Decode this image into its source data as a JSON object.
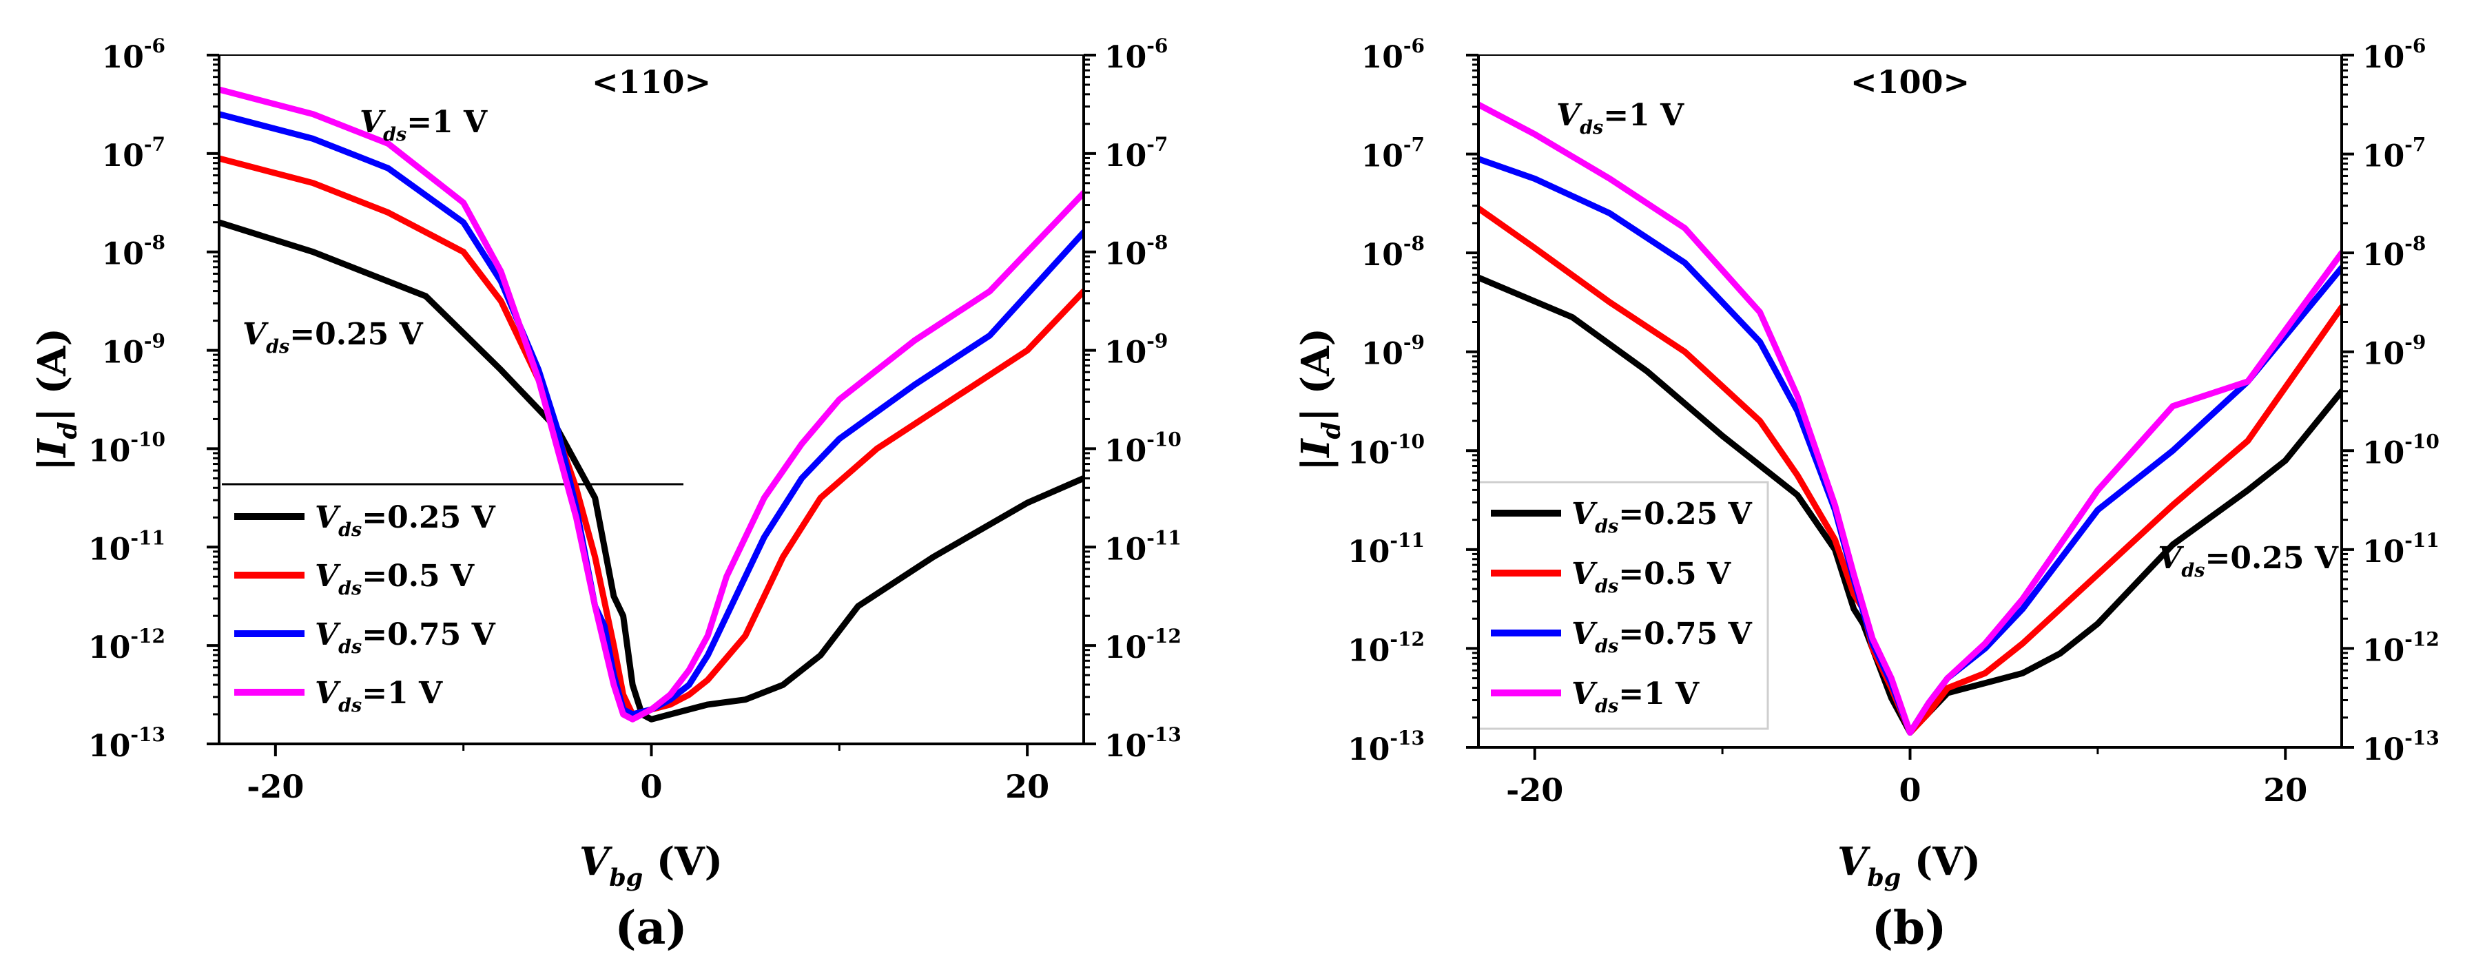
{
  "chart_data": [
    {
      "type": "line",
      "y_scale": "log",
      "panel": "(a)",
      "title": "<110>",
      "xlabel_main": "V",
      "xlabel_sub": "bg",
      "xlabel_unit": " (V)",
      "ylabel_pre": "|",
      "ylabel_main": "I",
      "ylabel_sub": "d",
      "ylabel_post": "| (A)",
      "xlim": [
        -23,
        23
      ],
      "ylim_exp": [
        -13,
        -6
      ],
      "x_ticks": [
        -20,
        0,
        20
      ],
      "x_tick_labels": [
        "-20",
        "0",
        "20"
      ],
      "y_tick_exponents": [
        -13,
        -12,
        -11,
        -10,
        -9,
        -8,
        -7,
        -6
      ],
      "y_tick_labels": [
        "-13",
        "-12",
        "-11",
        "-10",
        "-9",
        "-8",
        "-7",
        "-6"
      ],
      "y_tick_base": "10",
      "grid": false,
      "legend": {
        "position": "bottom-left",
        "entries": [
          {
            "main": "V",
            "sub": "ds",
            "rest": "=0.25 V",
            "color": "#000000"
          },
          {
            "main": "V",
            "sub": "ds",
            "rest": "=0.5 V",
            "color": "#ff0000"
          },
          {
            "main": "V",
            "sub": "ds",
            "rest": "=0.75 V",
            "color": "#0000ff"
          },
          {
            "main": "V",
            "sub": "ds",
            "rest": "=1 V",
            "color": "#ff00ff"
          }
        ]
      },
      "annotations": [
        {
          "main": "V",
          "sub": "ds",
          "rest": "=1 V",
          "position": "top-left"
        },
        {
          "main": "V",
          "sub": "ds",
          "rest": "=0.25 V",
          "position": "middle-left"
        }
      ],
      "series": [
        {
          "name": "Vds=0.25 V",
          "color": "#000000",
          "x": [
            -23,
            -18,
            -12,
            -8,
            -5,
            -3,
            -2,
            -1.5,
            -1,
            -0.5,
            0,
            1,
            3,
            5,
            7,
            9,
            11,
            15,
            20,
            23
          ],
          "y_exp": [
            -7.7,
            -8.0,
            -8.45,
            -9.2,
            -9.8,
            -10.5,
            -11.5,
            -11.7,
            -12.4,
            -12.7,
            -12.75,
            -12.7,
            -12.6,
            -12.55,
            -12.4,
            -12.1,
            -11.6,
            -11.1,
            -10.55,
            -10.3
          ]
        },
        {
          "name": "Vds=0.5 V",
          "color": "#ff0000",
          "x": [
            -23,
            -18,
            -14,
            -10,
            -8,
            -6,
            -4,
            -3,
            -2,
            -1.5,
            -1,
            0,
            1,
            2,
            3,
            5,
            7,
            9,
            12,
            16,
            20,
            23
          ],
          "y_exp": [
            -7.05,
            -7.3,
            -7.6,
            -8.0,
            -8.5,
            -9.3,
            -10.4,
            -11.1,
            -12.0,
            -12.5,
            -12.7,
            -12.65,
            -12.6,
            -12.5,
            -12.35,
            -11.9,
            -11.1,
            -10.5,
            -10.0,
            -9.5,
            -9.0,
            -8.4
          ]
        },
        {
          "name": "Vds=0.75 V",
          "color": "#0000ff",
          "x": [
            -23,
            -18,
            -14,
            -10,
            -8,
            -6,
            -5,
            -4,
            -3,
            -2.5,
            -2,
            -1.5,
            -1,
            0,
            1,
            2,
            3,
            4,
            6,
            8,
            10,
            14,
            18,
            23
          ],
          "y_exp": [
            -6.6,
            -6.85,
            -7.15,
            -7.7,
            -8.3,
            -9.2,
            -9.8,
            -10.6,
            -11.6,
            -11.8,
            -12.3,
            -12.65,
            -12.7,
            -12.65,
            -12.55,
            -12.4,
            -12.1,
            -11.7,
            -10.9,
            -10.3,
            -9.9,
            -9.35,
            -8.85,
            -7.8
          ]
        },
        {
          "name": "Vds=1 V",
          "color": "#ff00ff",
          "x": [
            -23,
            -18,
            -14,
            -10,
            -8,
            -6,
            -4,
            -3,
            -2,
            -1.5,
            -1,
            0,
            1,
            2,
            3,
            4,
            6,
            8,
            10,
            14,
            18,
            23
          ],
          "y_exp": [
            -6.35,
            -6.6,
            -6.9,
            -7.5,
            -8.2,
            -9.3,
            -10.7,
            -11.6,
            -12.4,
            -12.7,
            -12.75,
            -12.65,
            -12.5,
            -12.25,
            -11.9,
            -11.3,
            -10.5,
            -9.95,
            -9.5,
            -8.9,
            -8.4,
            -7.4
          ]
        }
      ]
    },
    {
      "type": "line",
      "y_scale": "log",
      "panel": "(b)",
      "title": "<100>",
      "xlabel_main": "V",
      "xlabel_sub": "bg",
      "xlabel_unit": " (V)",
      "ylabel_pre": "|",
      "ylabel_main": "I",
      "ylabel_sub": "d",
      "ylabel_post": "| (A)",
      "xlim": [
        -23,
        23
      ],
      "ylim_exp": [
        -13,
        -6
      ],
      "x_ticks": [
        -20,
        0,
        20
      ],
      "x_tick_labels": [
        "-20",
        "0",
        "20"
      ],
      "y_tick_exponents": [
        -13,
        -12,
        -11,
        -10,
        -9,
        -8,
        -7,
        -6
      ],
      "y_tick_labels": [
        "-13",
        "-12",
        "-11",
        "-10",
        "-9",
        "-8",
        "-7",
        "-6"
      ],
      "y_tick_base": "10",
      "grid": false,
      "legend": {
        "position": "bottom-left",
        "entries": [
          {
            "main": "V",
            "sub": "ds",
            "rest": "=0.25 V",
            "color": "#000000"
          },
          {
            "main": "V",
            "sub": "ds",
            "rest": "=0.5 V",
            "color": "#ff0000"
          },
          {
            "main": "V",
            "sub": "ds",
            "rest": "=0.75 V",
            "color": "#0000ff"
          },
          {
            "main": "V",
            "sub": "ds",
            "rest": "=1 V",
            "color": "#ff00ff"
          }
        ]
      },
      "annotations": [
        {
          "main": "V",
          "sub": "ds",
          "rest": "=1 V",
          "position": "top-left"
        },
        {
          "main": "V",
          "sub": "ds",
          "rest": "=0.25 V",
          "position": "middle-right"
        }
      ],
      "series": [
        {
          "name": "Vds=0.25 V",
          "color": "#000000",
          "x": [
            -23,
            -18,
            -14,
            -10,
            -8,
            -6,
            -4,
            -3,
            -2.5,
            -2,
            -1,
            0,
            1,
            2,
            4,
            6,
            8,
            10,
            14,
            18,
            20,
            23
          ],
          "y_exp": [
            -8.25,
            -8.65,
            -9.2,
            -9.85,
            -10.15,
            -10.45,
            -11.0,
            -11.6,
            -11.75,
            -12.0,
            -12.5,
            -12.85,
            -12.65,
            -12.45,
            -12.35,
            -12.25,
            -12.05,
            -11.75,
            -10.95,
            -10.4,
            -10.1,
            -9.4
          ]
        },
        {
          "name": "Vds=0.5 V",
          "color": "#ff0000",
          "x": [
            -23,
            -20,
            -16,
            -12,
            -8,
            -6,
            -4,
            -3,
            -2.5,
            -2,
            -1,
            0,
            1,
            2,
            4,
            6,
            8,
            10,
            14,
            18,
            23
          ],
          "y_exp": [
            -7.55,
            -7.95,
            -8.5,
            -9.0,
            -9.7,
            -10.25,
            -10.9,
            -11.45,
            -11.6,
            -12.0,
            -12.4,
            -12.85,
            -12.65,
            -12.4,
            -12.25,
            -11.95,
            -11.6,
            -11.25,
            -10.55,
            -9.9,
            -8.55
          ]
        },
        {
          "name": "Vds=0.75 V",
          "color": "#0000ff",
          "x": [
            -23,
            -20,
            -16,
            -12,
            -8,
            -6,
            -4,
            -3,
            -2,
            -1,
            0,
            1,
            2,
            4,
            6,
            8,
            10,
            14,
            18,
            23
          ],
          "y_exp": [
            -7.05,
            -7.25,
            -7.6,
            -8.1,
            -8.9,
            -9.6,
            -10.6,
            -11.3,
            -11.95,
            -12.35,
            -12.85,
            -12.55,
            -12.3,
            -12.0,
            -11.6,
            -11.1,
            -10.6,
            -10.0,
            -9.3,
            -8.15
          ]
        },
        {
          "name": "Vds=1 V",
          "color": "#ff00ff",
          "x": [
            -23,
            -20,
            -16,
            -12,
            -8,
            -6,
            -4,
            -3,
            -2,
            -1,
            0,
            1,
            2,
            4,
            6,
            8,
            10,
            14,
            18,
            23
          ],
          "y_exp": [
            -6.5,
            -6.8,
            -7.25,
            -7.75,
            -8.6,
            -9.45,
            -10.55,
            -11.25,
            -11.9,
            -12.3,
            -12.85,
            -12.55,
            -12.3,
            -11.95,
            -11.5,
            -10.95,
            -10.4,
            -9.55,
            -9.3,
            -8.0
          ]
        }
      ]
    }
  ]
}
